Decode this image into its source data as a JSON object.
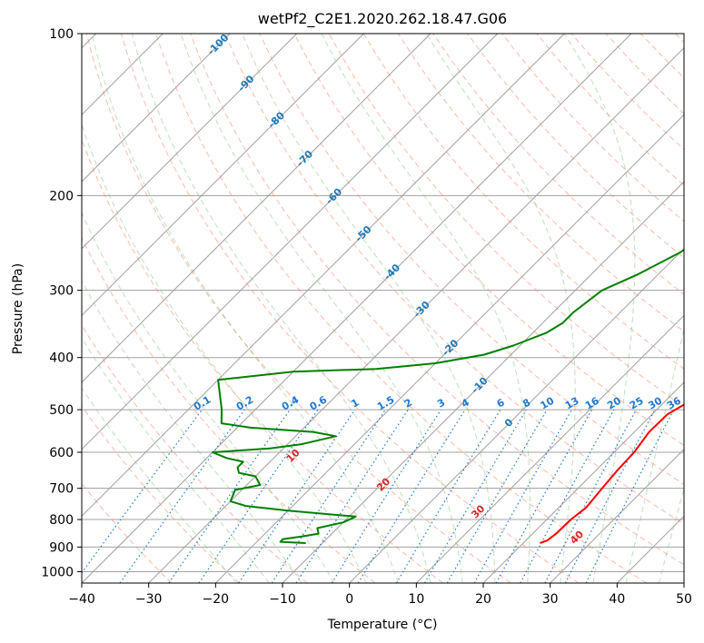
{
  "chart_data": {
    "type": "line",
    "title": "wetPf2_C2E1.2020.262.18.47.G06",
    "xlabel": "Temperature (°C)",
    "ylabel": "Pressure (hPa)",
    "xlim": [
      -40,
      50
    ],
    "ylim": [
      1050,
      100
    ],
    "y_scale": "log",
    "x_ticks": [
      -40,
      -30,
      -20,
      -10,
      0,
      10,
      20,
      30,
      40,
      50
    ],
    "y_ticks": [
      100,
      200,
      300,
      400,
      500,
      600,
      700,
      800,
      900,
      1000
    ],
    "grid": true,
    "colors": {
      "temperature": "#ff0000",
      "dewpoint": "#008000",
      "dry_adiabat": "#fa8060",
      "moist_adiabat": "#7fbf7f",
      "mixing_ratio": "#1e78d2",
      "isotherm_label": "#1f77b4",
      "dry_label": "#d62728",
      "grid": "#a0a0a0"
    },
    "series": [
      {
        "key": "temperature",
        "points": [
          [
            22.5,
            885
          ],
          [
            23.2,
            875
          ],
          [
            23.5,
            850
          ],
          [
            23.6,
            800
          ],
          [
            24.1,
            760
          ],
          [
            23.6,
            700
          ],
          [
            23.2,
            650
          ],
          [
            23.0,
            600
          ],
          [
            22.2,
            550
          ],
          [
            22.3,
            510
          ],
          [
            23.3,
            490
          ],
          [
            24.0,
            465
          ],
          [
            23.0,
            440
          ],
          [
            20.0,
            400
          ],
          [
            17.0,
            370
          ],
          [
            14.0,
            340
          ],
          [
            10.8,
            310
          ],
          [
            8.3,
            280
          ],
          [
            6.0,
            255
          ],
          [
            3.5,
            225
          ],
          [
            1.5,
            200
          ],
          [
            2.5,
            180
          ],
          [
            2.5,
            165
          ],
          [
            0.5,
            150
          ],
          [
            -0.5,
            135
          ],
          [
            -0.2,
            120
          ],
          [
            3.0,
            105
          ],
          [
            5.5,
            100
          ]
        ]
      },
      {
        "key": "dewpoint",
        "points": [
          [
            -12.5,
            885
          ],
          [
            -16.5,
            880
          ],
          [
            -16.5,
            870
          ],
          [
            -14,
            860
          ],
          [
            -12,
            850
          ],
          [
            -13,
            830
          ],
          [
            -10,
            810
          ],
          [
            -9,
            790
          ],
          [
            -20,
            770
          ],
          [
            -27,
            755
          ],
          [
            -30,
            740
          ],
          [
            -31,
            705
          ],
          [
            -28,
            690
          ],
          [
            -30,
            665
          ],
          [
            -33,
            655
          ],
          [
            -34,
            640
          ],
          [
            -34,
            625
          ],
          [
            -37,
            615
          ],
          [
            -40,
            600
          ],
          [
            -32,
            590
          ],
          [
            -28,
            580
          ],
          [
            -24,
            560
          ],
          [
            -28,
            550
          ],
          [
            -38,
            540
          ],
          [
            -43,
            530
          ],
          [
            -45,
            500
          ],
          [
            -50,
            440
          ],
          [
            -40,
            425
          ],
          [
            -28,
            420
          ],
          [
            -20,
            410
          ],
          [
            -14,
            395
          ],
          [
            -11,
            380
          ],
          [
            -8,
            360
          ],
          [
            -7,
            345
          ],
          [
            -7,
            330
          ],
          [
            -6,
            300
          ],
          [
            -3,
            280
          ],
          [
            0,
            255
          ],
          [
            1,
            240
          ],
          [
            1,
            230
          ],
          [
            2,
            215
          ],
          [
            2,
            200
          ],
          [
            1,
            190
          ],
          [
            -2,
            180
          ],
          [
            -4,
            170
          ],
          [
            -3,
            160
          ],
          [
            -1,
            150
          ],
          [
            -1,
            140
          ],
          [
            1,
            125
          ],
          [
            2,
            115
          ],
          [
            5,
            100
          ]
        ]
      }
    ],
    "isotherm_labels": [
      "-100",
      "-90",
      "-80",
      "-70",
      "-60",
      "-50",
      "-40",
      "-30",
      "-20",
      "-10",
      "0"
    ],
    "isotherm_label_values": [
      -100,
      -90,
      -80,
      -70,
      -60,
      -50,
      -40,
      -30,
      -20,
      -10,
      0
    ],
    "dry_adiabat_labels": [
      "10",
      "20",
      "30",
      "40"
    ],
    "dry_adiabat_label_values": [
      10,
      20,
      30,
      40
    ],
    "mixing_ratio_labels": [
      "0.1",
      "0.2",
      "0.4",
      "0.6",
      "1",
      "1.5",
      "2",
      "3",
      "4",
      "6",
      "8",
      "10",
      "13",
      "16",
      "20",
      "25",
      "30",
      "36"
    ],
    "mixing_ratio_values": [
      0.1,
      0.2,
      0.4,
      0.6,
      1,
      1.5,
      2,
      3,
      4,
      6,
      8,
      10,
      13,
      16,
      20,
      25,
      30,
      36
    ]
  }
}
